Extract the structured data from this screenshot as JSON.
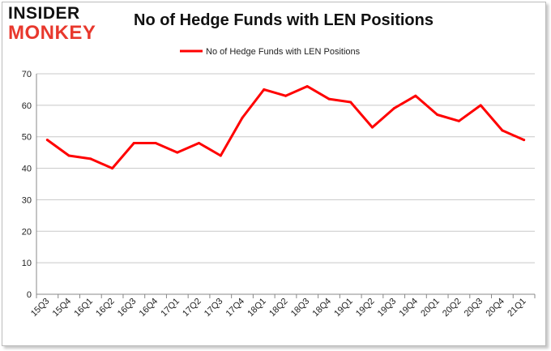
{
  "header": {
    "logo_top": "INSIDER",
    "logo_bottom": "MONKEY"
  },
  "colors": {
    "series": "#ff0000",
    "grid": "#c8c8c8",
    "axis": "#888888",
    "logo_red": "#e8382d"
  },
  "chart_data": {
    "type": "line",
    "title": "No of Hedge Funds with LEN Positions",
    "xlabel": "",
    "ylabel": "",
    "ylim": [
      0,
      70
    ],
    "yticks": [
      0,
      10,
      20,
      30,
      40,
      50,
      60,
      70
    ],
    "grid": true,
    "legend_position": "top-center",
    "categories": [
      "15Q3",
      "15Q4",
      "16Q1",
      "16Q2",
      "16Q3",
      "16Q4",
      "17Q1",
      "17Q2",
      "17Q3",
      "17Q4",
      "18Q1",
      "18Q2",
      "18Q3",
      "18Q4",
      "19Q1",
      "19Q2",
      "19Q3",
      "19Q4",
      "20Q1",
      "20Q2",
      "20Q3",
      "20Q4",
      "21Q1"
    ],
    "series": [
      {
        "name": "No of Hedge Funds with LEN Positions",
        "values": [
          49,
          44,
          43,
          40,
          48,
          48,
          45,
          48,
          44,
          56,
          65,
          63,
          66,
          62,
          61,
          53,
          59,
          63,
          57,
          55,
          60,
          52,
          49
        ]
      }
    ]
  }
}
